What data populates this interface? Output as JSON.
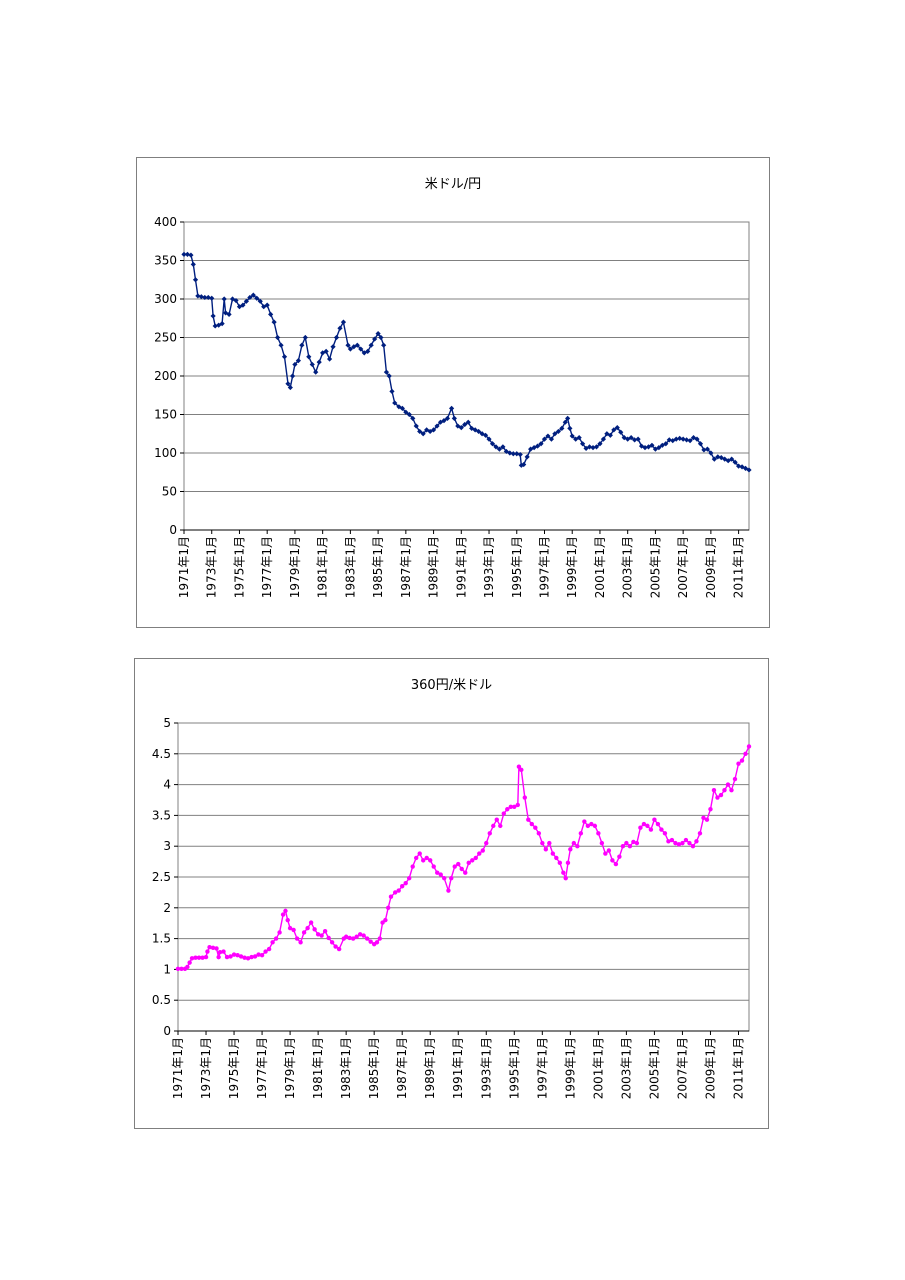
{
  "chart_data": [
    {
      "type": "line",
      "title": "米ドル/円",
      "xlabel": "",
      "ylabel": "",
      "ylim": [
        0,
        400
      ],
      "yticks": [
        "0",
        "50",
        "100",
        "150",
        "200",
        "250",
        "300",
        "350",
        "400"
      ],
      "grid": true,
      "xrange": [
        1971.0,
        2011.75
      ],
      "x_tick_labels": [
        "1971年1月",
        "1973年1月",
        "1975年1月",
        "1977年1月",
        "1979年1月",
        "1981年1月",
        "1983年1月",
        "1985年1月",
        "1987年1月",
        "1989年1月",
        "1991年1月",
        "1993年1月",
        "1995年1月",
        "1997年1月",
        "1999年1月",
        "2001年1月",
        "2003年1月",
        "2005年1月",
        "2007年1月",
        "2009年1月",
        "2011年1月"
      ],
      "marker": "diamond",
      "colors": {
        "series": "#001f7f"
      },
      "series": [
        {
          "x": [
            1971.0,
            1971.25,
            1971.5,
            1971.67,
            1971.83,
            1972.0,
            1972.25,
            1972.5,
            1972.75,
            1973.0,
            1973.1,
            1973.25,
            1973.5,
            1973.75,
            1973.9,
            1974.0,
            1974.25,
            1974.5,
            1974.75,
            1975.0,
            1975.25,
            1975.5,
            1975.75,
            1976.0,
            1976.25,
            1976.5,
            1976.75,
            1977.0,
            1977.25,
            1977.5,
            1977.75,
            1978.0,
            1978.25,
            1978.5,
            1978.67,
            1978.83,
            1979.0,
            1979.25,
            1979.5,
            1979.75,
            1980.0,
            1980.25,
            1980.5,
            1980.75,
            1981.0,
            1981.25,
            1981.5,
            1981.75,
            1982.0,
            1982.25,
            1982.5,
            1982.83,
            1983.0,
            1983.25,
            1983.5,
            1983.75,
            1984.0,
            1984.25,
            1984.5,
            1984.75,
            1985.0,
            1985.2,
            1985.4,
            1985.6,
            1985.8,
            1986.0,
            1986.2,
            1986.5,
            1986.75,
            1987.0,
            1987.25,
            1987.5,
            1987.75,
            1988.0,
            1988.25,
            1988.5,
            1988.75,
            1989.0,
            1989.25,
            1989.5,
            1989.75,
            1990.0,
            1990.3,
            1990.5,
            1990.75,
            1991.0,
            1991.25,
            1991.5,
            1991.75,
            1992.0,
            1992.25,
            1992.5,
            1992.75,
            1993.0,
            1993.25,
            1993.5,
            1993.75,
            1994.0,
            1994.25,
            1994.5,
            1994.75,
            1995.0,
            1995.25,
            1995.33,
            1995.5,
            1995.75,
            1996.0,
            1996.25,
            1996.5,
            1996.75,
            1997.0,
            1997.25,
            1997.5,
            1997.75,
            1998.0,
            1998.25,
            1998.5,
            1998.67,
            1998.83,
            1999.0,
            1999.25,
            1999.5,
            1999.75,
            2000.0,
            2000.25,
            2000.5,
            2000.75,
            2001.0,
            2001.25,
            2001.5,
            2001.75,
            2002.0,
            2002.25,
            2002.5,
            2002.75,
            2003.0,
            2003.25,
            2003.5,
            2003.75,
            2004.0,
            2004.25,
            2004.5,
            2004.75,
            2005.0,
            2005.25,
            2005.5,
            2005.75,
            2006.0,
            2006.25,
            2006.5,
            2006.75,
            2007.0,
            2007.25,
            2007.5,
            2007.75,
            2008.0,
            2008.25,
            2008.5,
            2008.75,
            2009.0,
            2009.25,
            2009.5,
            2009.75,
            2010.0,
            2010.25,
            2010.5,
            2010.75,
            2011.0,
            2011.25,
            2011.5,
            2011.75
          ],
          "values": [
            358,
            358,
            357,
            345,
            325,
            304,
            303,
            302,
            302,
            301,
            278,
            265,
            266,
            268,
            300,
            282,
            280,
            300,
            298,
            290,
            292,
            297,
            302,
            305,
            301,
            297,
            290,
            292,
            280,
            270,
            250,
            240,
            225,
            190,
            185,
            200,
            215,
            220,
            240,
            250,
            225,
            215,
            205,
            218,
            230,
            232,
            222,
            238,
            250,
            262,
            270,
            240,
            235,
            238,
            240,
            235,
            230,
            232,
            240,
            248,
            255,
            250,
            240,
            205,
            200,
            180,
            165,
            160,
            158,
            153,
            150,
            145,
            135,
            128,
            125,
            130,
            128,
            130,
            135,
            140,
            142,
            145,
            158,
            145,
            135,
            133,
            137,
            140,
            132,
            130,
            128,
            125,
            123,
            118,
            112,
            108,
            105,
            108,
            102,
            100,
            99,
            99,
            98,
            84,
            85,
            95,
            105,
            107,
            109,
            112,
            118,
            122,
            118,
            125,
            128,
            132,
            140,
            145,
            132,
            122,
            118,
            120,
            112,
            106,
            108,
            107,
            108,
            112,
            118,
            125,
            123,
            130,
            133,
            127,
            120,
            118,
            120,
            117,
            118,
            109,
            107,
            108,
            110,
            105,
            107,
            110,
            112,
            117,
            116,
            118,
            119,
            118,
            117,
            116,
            120,
            118,
            112,
            104,
            105,
            100,
            92,
            95,
            94,
            92,
            90,
            92,
            88,
            83,
            82,
            80,
            78
          ]
        }
      ]
    },
    {
      "type": "line",
      "title": "360円/米ドル",
      "xlabel": "",
      "ylabel": "",
      "ylim": [
        0,
        5
      ],
      "yticks": [
        "0",
        "0.5",
        "1",
        "1.5",
        "2",
        "2.5",
        "3",
        "3.5",
        "4",
        "4.5",
        "5"
      ],
      "grid": true,
      "xrange": [
        1971.0,
        2011.75
      ],
      "x_tick_labels": [
        "1971年1月",
        "1973年1月",
        "1975年1月",
        "1977年1月",
        "1979年1月",
        "1981年1月",
        "1983年1月",
        "1985年1月",
        "1987年1月",
        "1989年1月",
        "1991年1月",
        "1993年1月",
        "1995年1月",
        "1997年1月",
        "1999年1月",
        "2001年1月",
        "2003年1月",
        "2005年1月",
        "2007年1月",
        "2009年1月",
        "2011年1月"
      ],
      "marker": "circle",
      "colors": {
        "series": "#ff00ff"
      },
      "series": [
        {
          "x": [
            1971.0,
            1971.25,
            1971.5,
            1971.67,
            1971.83,
            1972.0,
            1972.25,
            1972.5,
            1972.75,
            1973.0,
            1973.1,
            1973.25,
            1973.5,
            1973.75,
            1973.9,
            1974.0,
            1974.25,
            1974.5,
            1974.75,
            1975.0,
            1975.25,
            1975.5,
            1975.75,
            1976.0,
            1976.25,
            1976.5,
            1976.75,
            1977.0,
            1977.25,
            1977.5,
            1977.75,
            1978.0,
            1978.25,
            1978.5,
            1978.67,
            1978.83,
            1979.0,
            1979.25,
            1979.5,
            1979.75,
            1980.0,
            1980.25,
            1980.5,
            1980.75,
            1981.0,
            1981.25,
            1981.5,
            1981.75,
            1982.0,
            1982.25,
            1982.5,
            1982.83,
            1983.0,
            1983.25,
            1983.5,
            1983.75,
            1984.0,
            1984.25,
            1984.5,
            1984.75,
            1985.0,
            1985.2,
            1985.4,
            1985.6,
            1985.8,
            1986.0,
            1986.2,
            1986.5,
            1986.75,
            1987.0,
            1987.25,
            1987.5,
            1987.75,
            1988.0,
            1988.25,
            1988.5,
            1988.75,
            1989.0,
            1989.25,
            1989.5,
            1989.75,
            1990.0,
            1990.3,
            1990.5,
            1990.75,
            1991.0,
            1991.25,
            1991.5,
            1991.75,
            1992.0,
            1992.25,
            1992.5,
            1992.75,
            1993.0,
            1993.25,
            1993.5,
            1993.75,
            1994.0,
            1994.25,
            1994.5,
            1994.75,
            1995.0,
            1995.25,
            1995.33,
            1995.5,
            1995.75,
            1996.0,
            1996.25,
            1996.5,
            1996.75,
            1997.0,
            1997.25,
            1997.5,
            1997.75,
            1998.0,
            1998.25,
            1998.5,
            1998.67,
            1998.83,
            1999.0,
            1999.25,
            1999.5,
            1999.75,
            2000.0,
            2000.25,
            2000.5,
            2000.75,
            2001.0,
            2001.25,
            2001.5,
            2001.75,
            2002.0,
            2002.25,
            2002.5,
            2002.75,
            2003.0,
            2003.25,
            2003.5,
            2003.75,
            2004.0,
            2004.25,
            2004.5,
            2004.75,
            2005.0,
            2005.25,
            2005.5,
            2005.75,
            2006.0,
            2006.25,
            2006.5,
            2006.75,
            2007.0,
            2007.25,
            2007.5,
            2007.75,
            2008.0,
            2008.25,
            2008.5,
            2008.75,
            2009.0,
            2009.25,
            2009.5,
            2009.75,
            2010.0,
            2010.25,
            2010.5,
            2010.75,
            2011.0,
            2011.25,
            2011.5,
            2011.75
          ],
          "values": [
            1.01,
            1.01,
            1.01,
            1.04,
            1.11,
            1.18,
            1.19,
            1.19,
            1.19,
            1.2,
            1.29,
            1.36,
            1.35,
            1.34,
            1.2,
            1.28,
            1.29,
            1.2,
            1.21,
            1.24,
            1.23,
            1.21,
            1.19,
            1.18,
            1.2,
            1.21,
            1.24,
            1.23,
            1.29,
            1.33,
            1.44,
            1.5,
            1.6,
            1.89,
            1.95,
            1.8,
            1.67,
            1.64,
            1.5,
            1.44,
            1.6,
            1.67,
            1.76,
            1.65,
            1.57,
            1.55,
            1.62,
            1.51,
            1.44,
            1.37,
            1.33,
            1.5,
            1.53,
            1.51,
            1.5,
            1.53,
            1.57,
            1.55,
            1.5,
            1.45,
            1.41,
            1.44,
            1.5,
            1.76,
            1.8,
            2.0,
            2.18,
            2.25,
            2.28,
            2.35,
            2.4,
            2.48,
            2.67,
            2.81,
            2.88,
            2.77,
            2.81,
            2.77,
            2.67,
            2.57,
            2.54,
            2.48,
            2.28,
            2.48,
            2.67,
            2.71,
            2.63,
            2.57,
            2.73,
            2.77,
            2.81,
            2.88,
            2.93,
            3.05,
            3.21,
            3.33,
            3.43,
            3.33,
            3.53,
            3.6,
            3.64,
            3.64,
            3.67,
            4.29,
            4.24,
            3.79,
            3.43,
            3.36,
            3.3,
            3.21,
            3.05,
            2.95,
            3.05,
            2.88,
            2.81,
            2.73,
            2.57,
            2.48,
            2.73,
            2.95,
            3.05,
            3.0,
            3.21,
            3.4,
            3.33,
            3.36,
            3.33,
            3.21,
            3.05,
            2.88,
            2.93,
            2.77,
            2.71,
            2.83,
            3.0,
            3.05,
            3.0,
            3.07,
            3.05,
            3.3,
            3.36,
            3.33,
            3.27,
            3.43,
            3.36,
            3.27,
            3.21,
            3.08,
            3.1,
            3.05,
            3.03,
            3.05,
            3.1,
            3.05,
            3.0,
            3.08,
            3.21,
            3.46,
            3.43,
            3.6,
            3.91,
            3.79,
            3.83,
            3.91,
            4.0,
            3.91,
            4.09,
            4.34,
            4.39,
            4.5,
            4.62
          ]
        }
      ]
    }
  ]
}
